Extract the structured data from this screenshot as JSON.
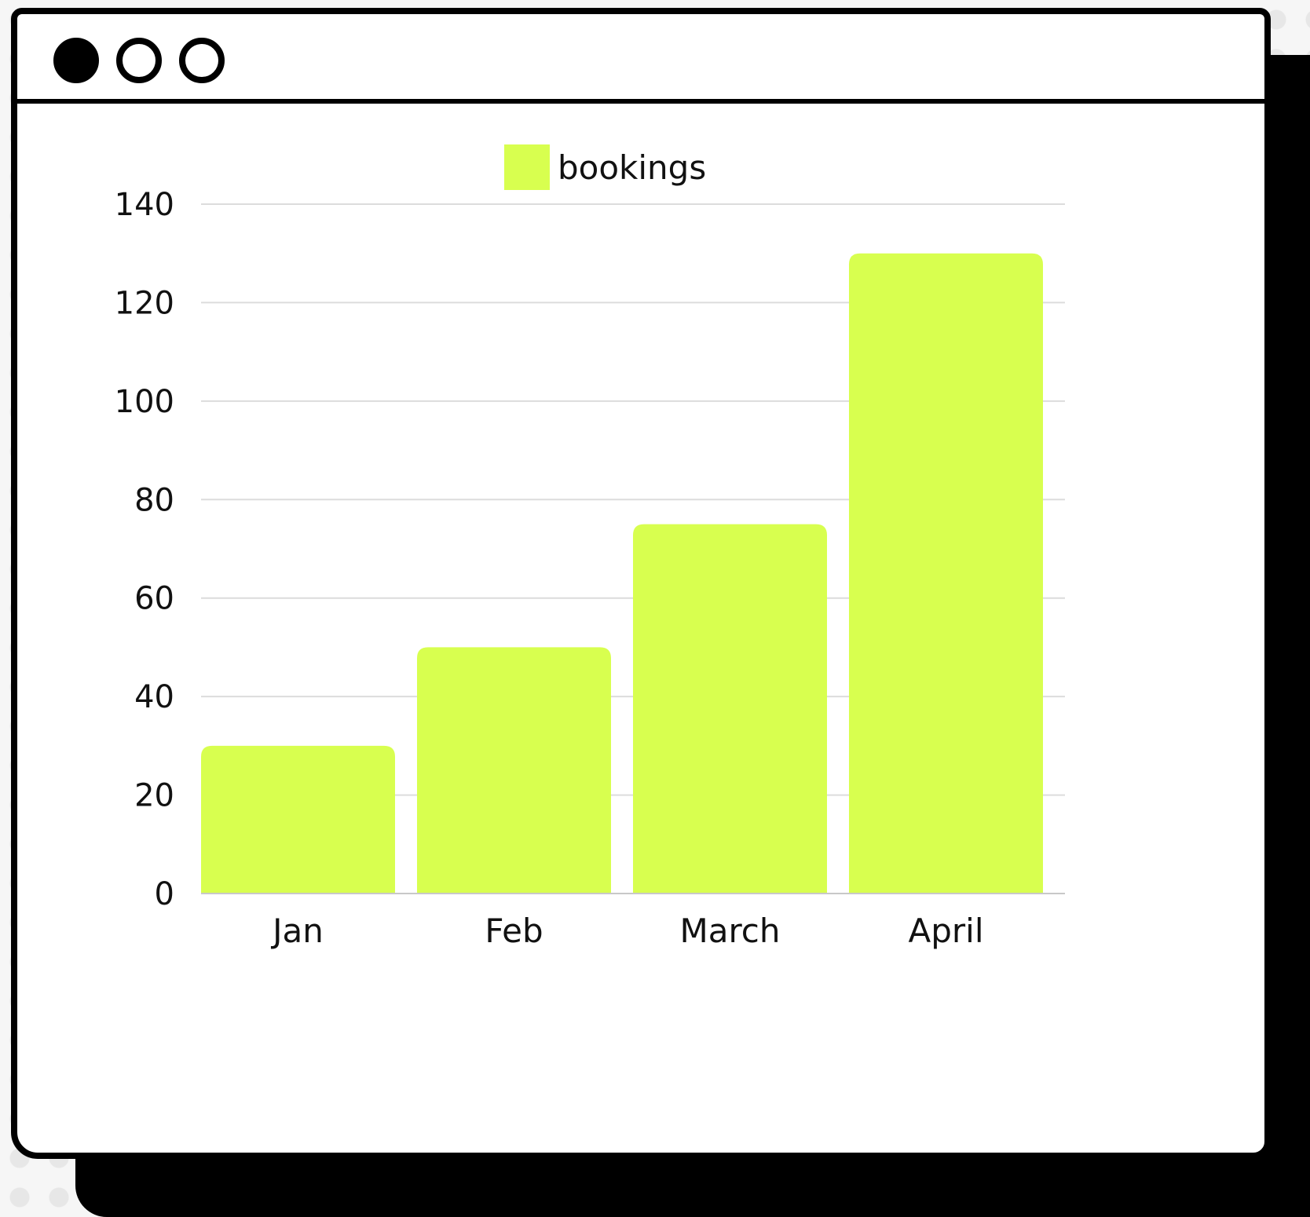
{
  "window": {
    "controls": [
      {
        "name": "close-dot",
        "style": "filled"
      },
      {
        "name": "minimize-dot",
        "style": "outline"
      },
      {
        "name": "maximize-dot",
        "style": "outline"
      }
    ]
  },
  "chart_data": {
    "type": "bar",
    "categories": [
      "Jan",
      "Feb",
      "March",
      "April"
    ],
    "series": [
      {
        "name": "bookings",
        "values": [
          30,
          50,
          75,
          130
        ],
        "color": "#d8ff4f"
      }
    ],
    "title": "",
    "xlabel": "",
    "ylabel": "",
    "ylim": [
      0,
      140
    ],
    "yticks": [
      0,
      20,
      40,
      60,
      80,
      100,
      120,
      140
    ],
    "grid": true,
    "legend": "top-center"
  }
}
